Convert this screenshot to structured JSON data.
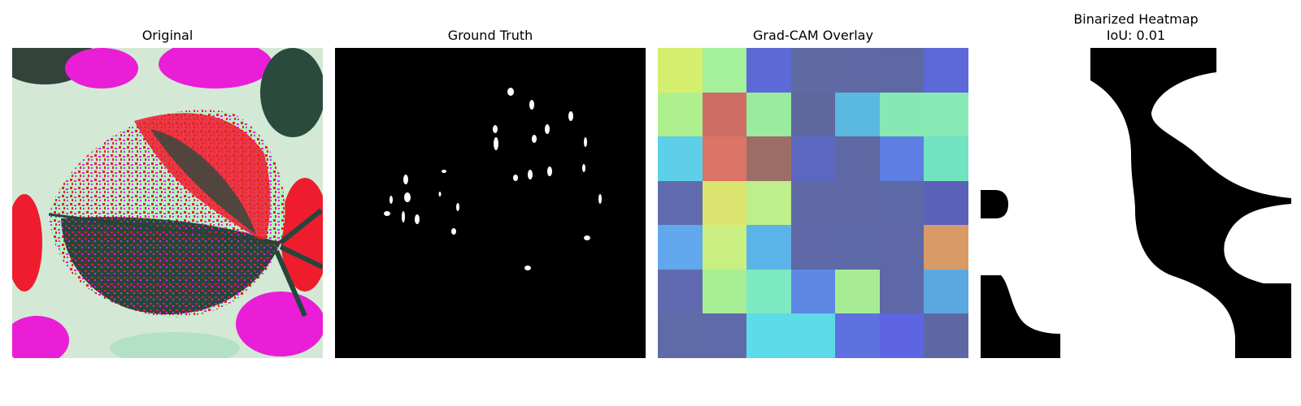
{
  "panels": [
    {
      "title": "Original"
    },
    {
      "title": "Ground Truth"
    },
    {
      "title": "Grad-CAM Overlay"
    },
    {
      "title": "Binarized Heatmap",
      "subtitle": "IoU: 0.01"
    }
  ],
  "gradcam_grid": [
    [
      "#d6ee6e",
      "#a5f09a",
      "#5c69d6",
      "#606aa2",
      "#5f69a3",
      "#5e68a3",
      "#5d68d9"
    ],
    [
      "#aef08e",
      "#cd6d64",
      "#9aeaa0",
      "#5e689f",
      "#5ab8e1",
      "#86e9b4",
      "#87e9b4"
    ],
    [
      "#5ecfe9",
      "#dc7468",
      "#9c6d67",
      "#5c68bf",
      "#5e68a2",
      "#5d7ee3",
      "#71e3c0"
    ],
    [
      "#606bb0",
      "#dbe46e",
      "#bfef8a",
      "#5f69a5",
      "#5f69a5",
      "#5d68a6",
      "#5a61b8"
    ],
    [
      "#61a9ec",
      "#c9ef82",
      "#5cb3e7",
      "#5f69a8",
      "#5e69a7",
      "#5e68a6",
      "#d89a67"
    ],
    [
      "#5f6ab0",
      "#a8ee94",
      "#7ceac2",
      "#5e88e4",
      "#a7ec94",
      "#5e68a6",
      "#5ba8e0"
    ],
    [
      "#5f6ba7",
      "#5f6ba8",
      "#5ddbe8",
      "#5dd9e8",
      "#5f70e1",
      "#5d65e3",
      "#5e67a1"
    ]
  ]
}
